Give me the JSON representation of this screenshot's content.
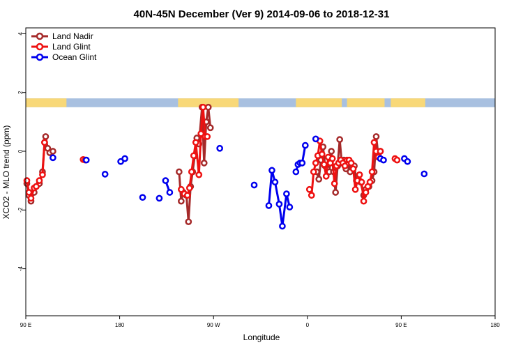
{
  "chart_data": {
    "type": "line",
    "title": "40N-45N December (Ver 9)   2014-09-06 to 2018-12-31",
    "xlabel": "Longitude",
    "ylabel": "XCO2 - MLO trend (ppm)",
    "x_ticks": [
      {
        "value": 90,
        "label": "90 E"
      },
      {
        "value": 180,
        "label": "180"
      },
      {
        "value": 270,
        "label": "90 W"
      },
      {
        "value": 360,
        "label": "0"
      },
      {
        "value": 450,
        "label": "90 E"
      },
      {
        "value": 540,
        "label": "180"
      }
    ],
    "y_ticks": [
      {
        "value": -4,
        "label": "-4"
      },
      {
        "value": -2,
        "label": "-2"
      },
      {
        "value": 0,
        "label": "0"
      },
      {
        "value": 2,
        "label": "2"
      },
      {
        "value": 4,
        "label": "4"
      }
    ],
    "xlim": [
      90,
      540
    ],
    "ylim": [
      -5.6,
      4.2
    ],
    "legend_position": "top-left",
    "surface_band": {
      "y_range": [
        1.5,
        1.8
      ],
      "land_color": "#f8d878",
      "ocean_color": "#a8c0e0",
      "land_segments": [
        [
          90,
          130
        ],
        [
          150,
          151
        ],
        [
          236,
          294
        ],
        [
          349,
          352
        ],
        [
          357,
          393
        ],
        [
          398,
          434
        ],
        [
          462,
          460
        ],
        [
          480,
          483
        ]
      ],
      "all_land_segments": [
        [
          90,
          129
        ],
        [
          236,
          294
        ],
        [
          349,
          393
        ],
        [
          398,
          434
        ],
        [
          440,
          473
        ]
      ]
    },
    "series": [
      {
        "name": "Land Nadir",
        "color": "#a52a2a",
        "segments": [
          [
            [
              91,
              -1.1
            ],
            [
              93,
              -1.5
            ],
            [
              95,
              -1.7
            ],
            [
              98,
              -1.4
            ],
            [
              100,
              -1.2
            ],
            [
              103,
              -1.1
            ],
            [
              106,
              -0.7
            ],
            [
              108,
              0.3
            ],
            [
              109,
              0.5
            ],
            [
              111,
              0.1
            ],
            [
              113,
              -0.05
            ],
            [
              116,
              0
            ]
          ],
          [
            [
              237,
              -0.7
            ],
            [
              239,
              -1.7
            ],
            [
              241,
              -1.4
            ],
            [
              244,
              -1.5
            ],
            [
              246,
              -2.4
            ],
            [
              248,
              -1.2
            ],
            [
              250,
              -0.7
            ],
            [
              252,
              -0.15
            ],
            [
              254,
              0.45
            ],
            [
              256,
              0.25
            ],
            [
              259,
              1.5
            ],
            [
              261,
              -0.4
            ],
            [
              263,
              1.0
            ],
            [
              265,
              1.5
            ],
            [
              267,
              0.8
            ]
          ],
          [
            [
              369,
              -0.7
            ],
            [
              371,
              -0.95
            ],
            [
              373,
              -0.3
            ],
            [
              375,
              0.15
            ],
            [
              377,
              -0.5
            ],
            [
              379,
              -0.6
            ],
            [
              381,
              -0.7
            ],
            [
              383,
              0.0
            ],
            [
              385,
              -0.7
            ],
            [
              387,
              -1.4
            ],
            [
              389,
              -0.5
            ],
            [
              391,
              0.4
            ],
            [
              393,
              -0.4
            ],
            [
              395,
              -0.3
            ],
            [
              397,
              -0.6
            ],
            [
              399,
              -0.4
            ],
            [
              401,
              -0.7
            ],
            [
              403,
              -0.5
            ],
            [
              405,
              -0.5
            ],
            [
              407,
              -1.0
            ],
            [
              409,
              -1.0
            ],
            [
              411,
              -1.05
            ],
            [
              414,
              -1.5
            ],
            [
              416,
              -1.3
            ],
            [
              419,
              -1.2
            ],
            [
              422,
              -1.0
            ],
            [
              424,
              -0.7
            ],
            [
              426,
              0.5
            ],
            [
              428,
              -0.15
            ],
            [
              430,
              0.0
            ]
          ]
        ]
      },
      {
        "name": "Land Glint",
        "color": "#ee1111",
        "segments": [
          [
            [
              91,
              -1.0
            ],
            [
              93,
              -1.4
            ],
            [
              95,
              -1.6
            ],
            [
              98,
              -1.25
            ],
            [
              100,
              -1.2
            ],
            [
              103,
              -1.0
            ],
            [
              106,
              -0.8
            ],
            [
              108,
              0.3
            ]
          ],
          [
            [
              145,
              -0.28
            ],
            [
              147,
              -0.3
            ]
          ],
          [
            [
              239,
              -1.3
            ],
            [
              242,
              -1.45
            ],
            [
              245,
              -1.5
            ],
            [
              247,
              -1.25
            ],
            [
              249,
              -0.7
            ],
            [
              251,
              -0.15
            ],
            [
              253,
              0.3
            ],
            [
              256,
              -0.8
            ],
            [
              258,
              0.6
            ],
            [
              260,
              1.5
            ],
            [
              262,
              0.5
            ],
            [
              264,
              0.5
            ]
          ],
          [
            [
              362,
              -1.3
            ],
            [
              364,
              -1.5
            ],
            [
              366,
              -0.7
            ],
            [
              368,
              -0.4
            ],
            [
              370,
              -0.15
            ],
            [
              372,
              0.35
            ],
            [
              374,
              -0.1
            ],
            [
              376,
              -0.45
            ],
            [
              378,
              -0.85
            ],
            [
              380,
              -0.2
            ],
            [
              382,
              -0.4
            ],
            [
              384,
              -0.25
            ],
            [
              386,
              -1.1
            ],
            [
              388,
              -0.5
            ],
            [
              390,
              -0.4
            ],
            [
              392,
              -0.3
            ],
            [
              394,
              -0.4
            ],
            [
              396,
              -0.5
            ],
            [
              398,
              -0.3
            ],
            [
              400,
              -0.3
            ],
            [
              402,
              -0.4
            ],
            [
              404,
              -0.6
            ],
            [
              406,
              -1.3
            ],
            [
              408,
              -1.0
            ],
            [
              410,
              -0.8
            ],
            [
              412,
              -1.05
            ],
            [
              414,
              -1.7
            ],
            [
              416,
              -1.4
            ],
            [
              418,
              -1.2
            ],
            [
              420,
              -1.05
            ],
            [
              422,
              -0.7
            ],
            [
              424,
              0.3
            ],
            [
              426,
              0.0
            ],
            [
              428,
              -0.2
            ],
            [
              430,
              0.0
            ]
          ],
          [
            [
              444,
              -0.25
            ],
            [
              446,
              -0.3
            ]
          ]
        ]
      },
      {
        "name": "Ocean Glint",
        "color": "#0000ee",
        "segments": [
          [
            [
              116,
              -0.22
            ]
          ],
          [
            [
              148,
              -0.3
            ]
          ],
          [
            [
              166,
              -0.78
            ]
          ],
          [
            [
              181,
              -0.35
            ],
            [
              185,
              -0.25
            ]
          ],
          [
            [
              202,
              -1.57
            ]
          ],
          [
            [
              218,
              -1.6
            ]
          ],
          [
            [
              224,
              -1.0
            ],
            [
              228,
              -1.4
            ]
          ],
          [
            [
              276,
              0.1
            ]
          ],
          [
            [
              309,
              -1.15
            ]
          ],
          [
            [
              323,
              -1.85
            ],
            [
              326,
              -0.65
            ],
            [
              329,
              -1.05
            ],
            [
              333,
              -1.8
            ],
            [
              336,
              -2.55
            ],
            [
              340,
              -1.45
            ],
            [
              343,
              -1.9
            ]
          ],
          [
            [
              349,
              -0.7
            ],
            [
              351,
              -0.45
            ],
            [
              353,
              -0.4
            ],
            [
              355,
              -0.4
            ],
            [
              358,
              0.2
            ]
          ],
          [
            [
              368,
              0.42
            ]
          ],
          [
            [
              430,
              -0.25
            ],
            [
              433,
              -0.3
            ]
          ],
          [
            [
              453,
              -0.25
            ],
            [
              456,
              -0.35
            ]
          ],
          [
            [
              472,
              -0.77
            ]
          ]
        ]
      }
    ]
  }
}
